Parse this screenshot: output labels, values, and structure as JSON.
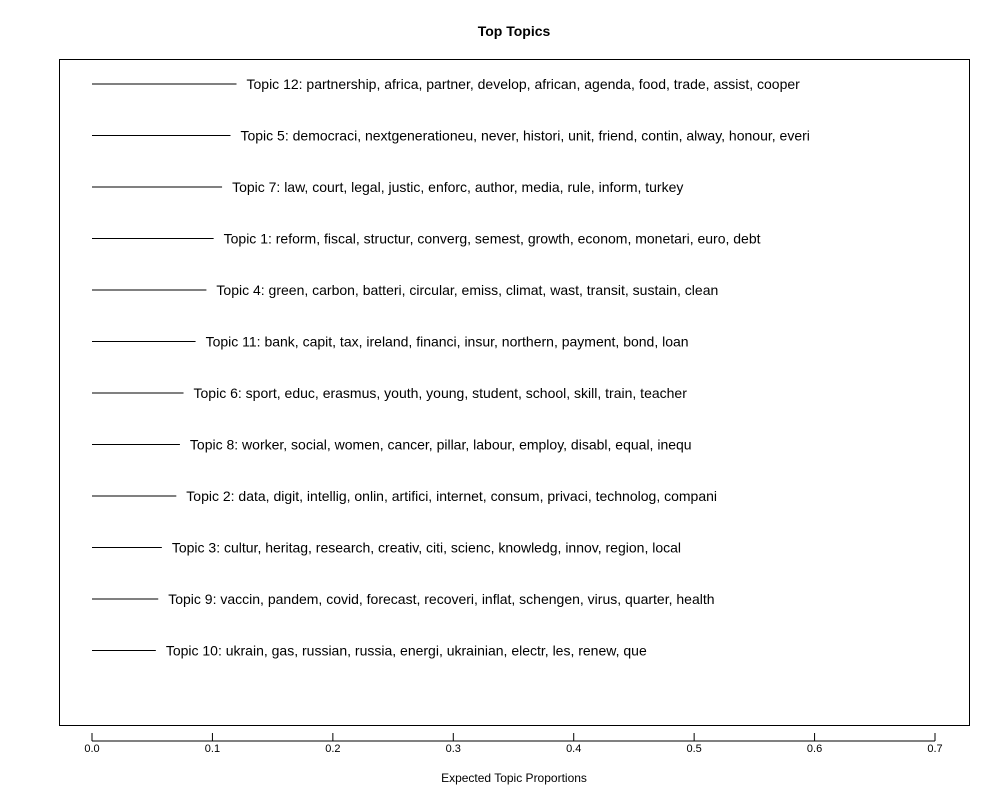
{
  "chart_data": {
    "type": "bar",
    "title": "Top Topics",
    "xlabel": "Expected Topic Proportions",
    "ylabel": "",
    "xlim": [
      0.0,
      0.7
    ],
    "x_ticks": [
      0.0,
      0.1,
      0.2,
      0.3,
      0.4,
      0.5,
      0.6,
      0.7
    ],
    "x_tick_labels": [
      "0.0",
      "0.1",
      "0.2",
      "0.3",
      "0.4",
      "0.5",
      "0.6",
      "0.7"
    ],
    "grid": false,
    "orientation": "horizontal",
    "categories": [
      "Topic 12: partnership, africa, partner, develop, african, agenda, food, trade, assist, cooper",
      "Topic 5: democraci, nextgenerationeu, never, histori, unit, friend, contin, alway, honour, everi",
      "Topic 7: law, court, legal, justic, enforc, author, media, rule, inform, turkey",
      "Topic 1: reform, fiscal, structur, converg, semest, growth, econom, monetari, euro, debt",
      "Topic 4: green, carbon, batteri, circular, emiss, climat, wast, transit, sustain, clean",
      "Topic 11: bank, capit, tax, ireland, financi, insur, northern, payment, bond, loan",
      "Topic 6: sport, educ, erasmus, youth, young, student, school, skill, train, teacher",
      "Topic 8: worker, social, women, cancer, pillar, labour, employ, disabl, equal, inequ",
      "Topic 2: data, digit, intellig, onlin, artifici, internet, consum, privaci, technolog, compani",
      "Topic 3: cultur, heritag, research, creativ, citi, scienc, knowledg, innov, region, local",
      "Topic 9: vaccin, pandem, covid, forecast, recoveri, inflat, schengen, virus, quarter, health",
      "Topic 10: ukrain, gas, russian, russia, energi, ukrainian, electr, les, renew, que"
    ],
    "values": [
      0.12,
      0.115,
      0.108,
      0.101,
      0.095,
      0.086,
      0.076,
      0.073,
      0.07,
      0.058,
      0.055,
      0.053
    ]
  }
}
